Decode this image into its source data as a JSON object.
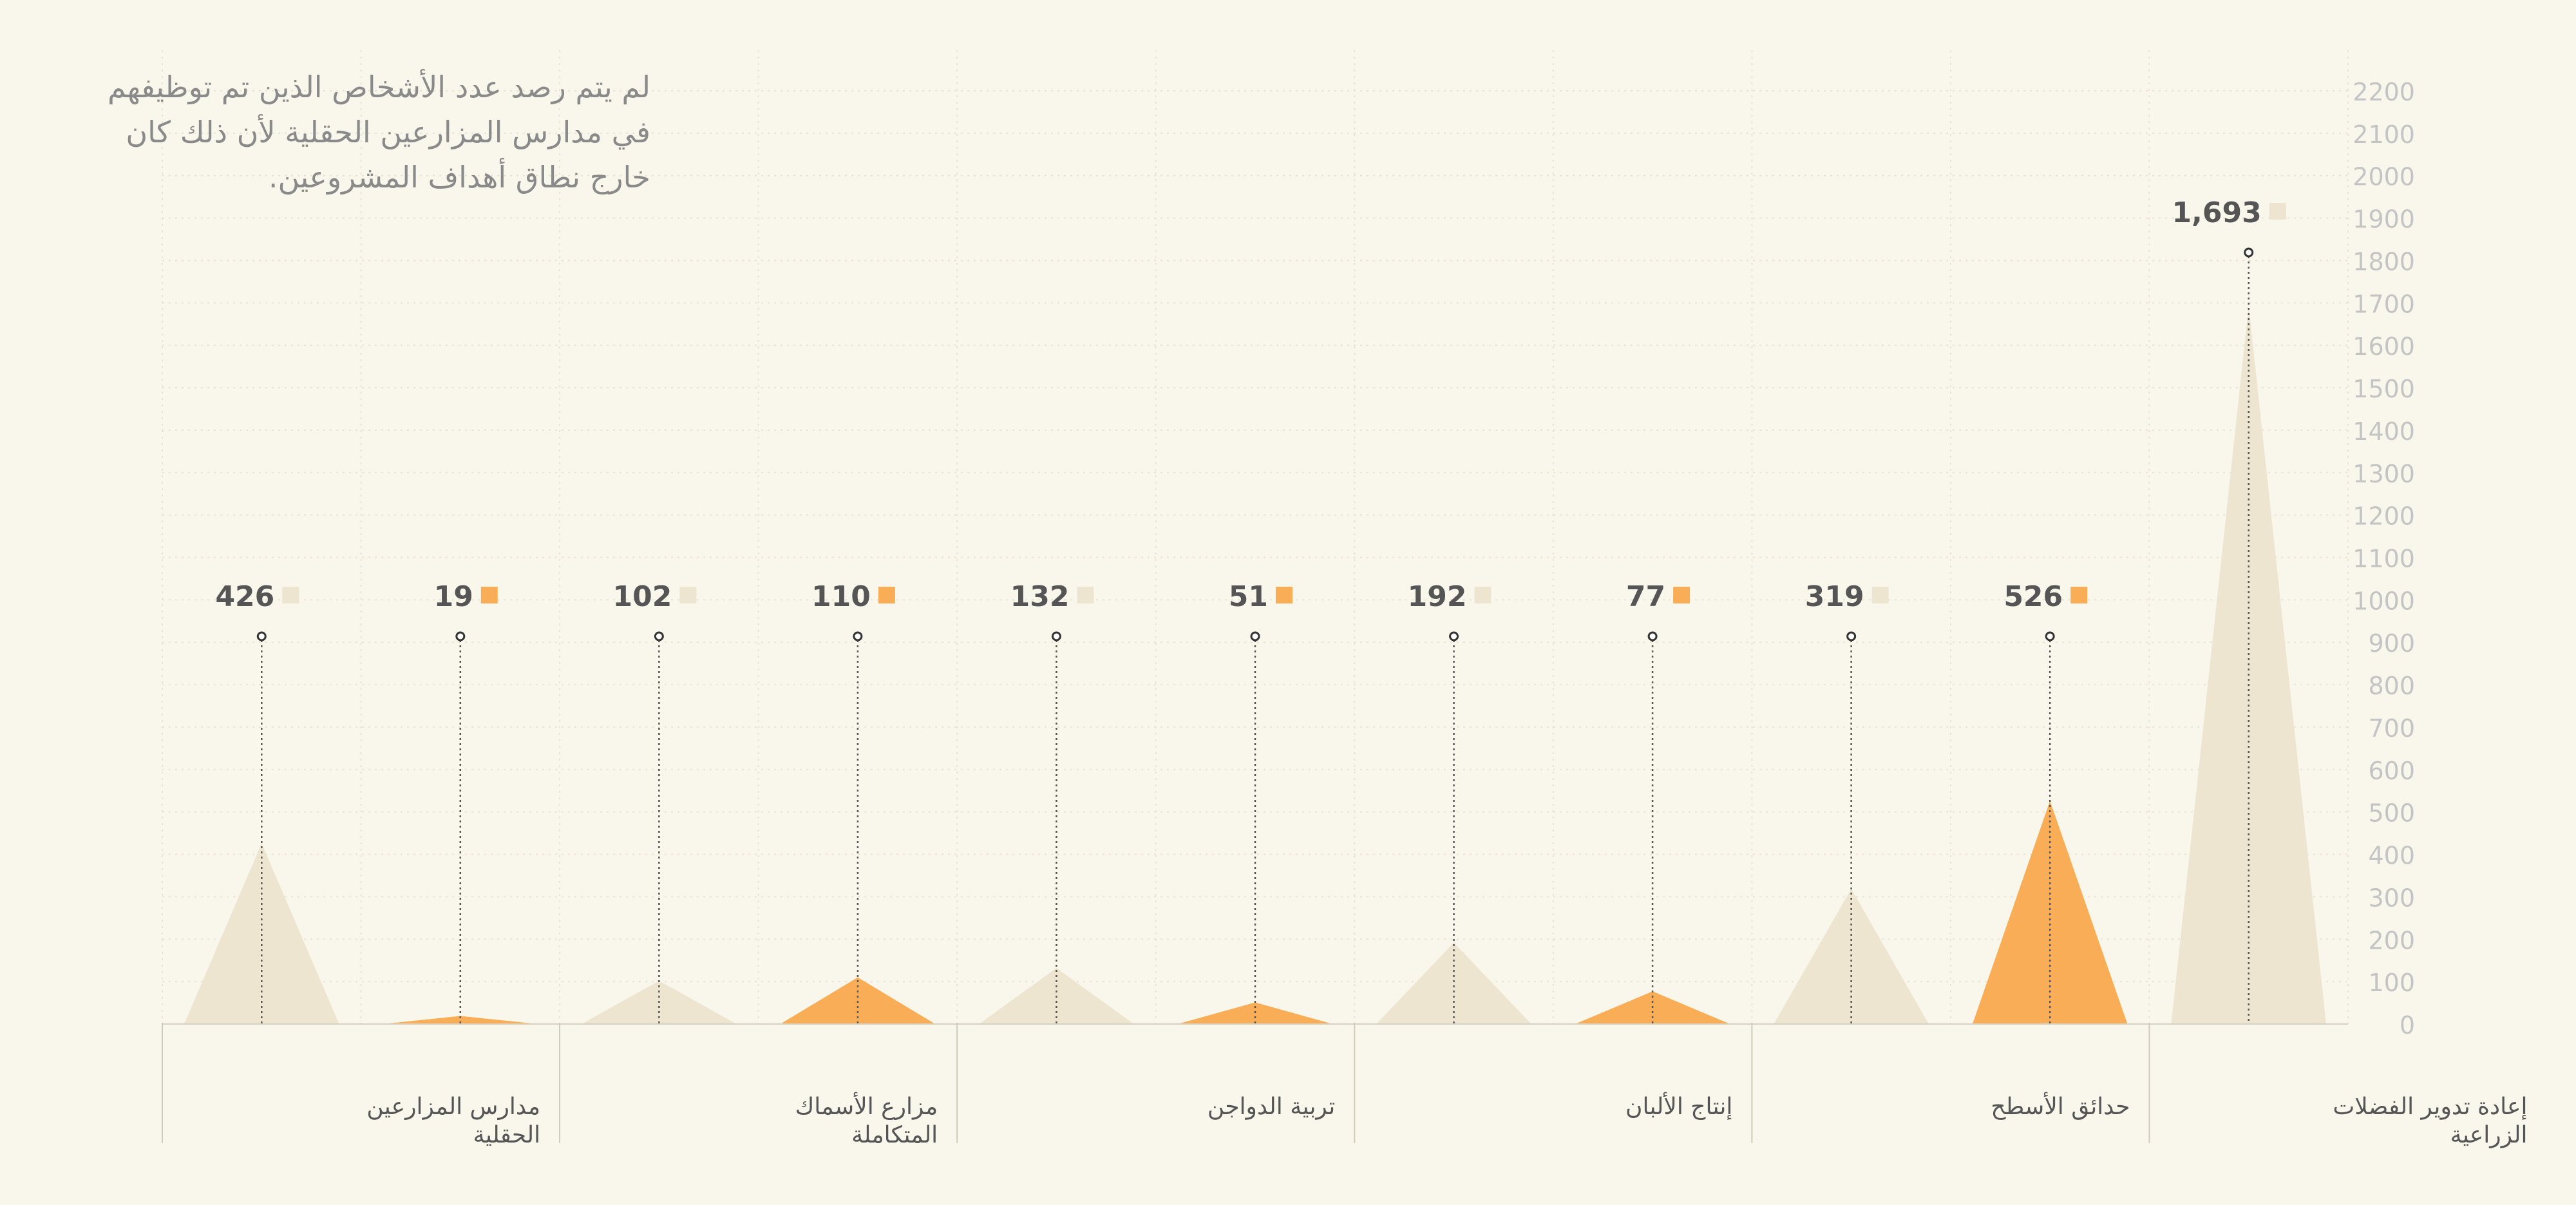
{
  "note_text": "لم يتم رصد عدد الأشخاص الذين تم توظيفهم في مدارس المزارعين الحقلية لأن ذلك كان خارج نطاق أهداف المشروعين.",
  "colors": {
    "background": "#f9f7ec",
    "orange": "#f9ad56",
    "beige": "#ede5cf",
    "text": "#555555",
    "tick": "#c4c4c4",
    "label": "#555555"
  },
  "chart_data": {
    "type": "area",
    "ylim": [
      0,
      2200
    ],
    "yticks": [
      0,
      100,
      200,
      300,
      400,
      500,
      600,
      700,
      800,
      900,
      1000,
      1100,
      1200,
      1300,
      1400,
      1500,
      1600,
      1700,
      1800,
      1900,
      2000,
      2100,
      2200
    ],
    "groups": [
      "مدارس المزارعين الحقلية",
      "مزارع الأسماك المتكاملة",
      "تربية الدواجن",
      "إنتاج الألبان",
      "حدائق الأسطح",
      "إعادة تدوير الفضلات الزراعية"
    ],
    "points": [
      {
        "value": 426,
        "label": "426",
        "color": "beige"
      },
      {
        "value": 19,
        "label": "19",
        "color": "orange"
      },
      {
        "value": 102,
        "label": "102",
        "color": "beige"
      },
      {
        "value": 110,
        "label": "110",
        "color": "orange"
      },
      {
        "value": 132,
        "label": "132",
        "color": "beige"
      },
      {
        "value": 51,
        "label": "51",
        "color": "orange"
      },
      {
        "value": 192,
        "label": "192",
        "color": "beige"
      },
      {
        "value": 77,
        "label": "77",
        "color": "orange"
      },
      {
        "value": 319,
        "label": "319",
        "color": "beige"
      },
      {
        "value": 526,
        "label": "526",
        "color": "orange"
      },
      {
        "value": 1693,
        "label": "1,693",
        "color": "beige"
      }
    ]
  }
}
